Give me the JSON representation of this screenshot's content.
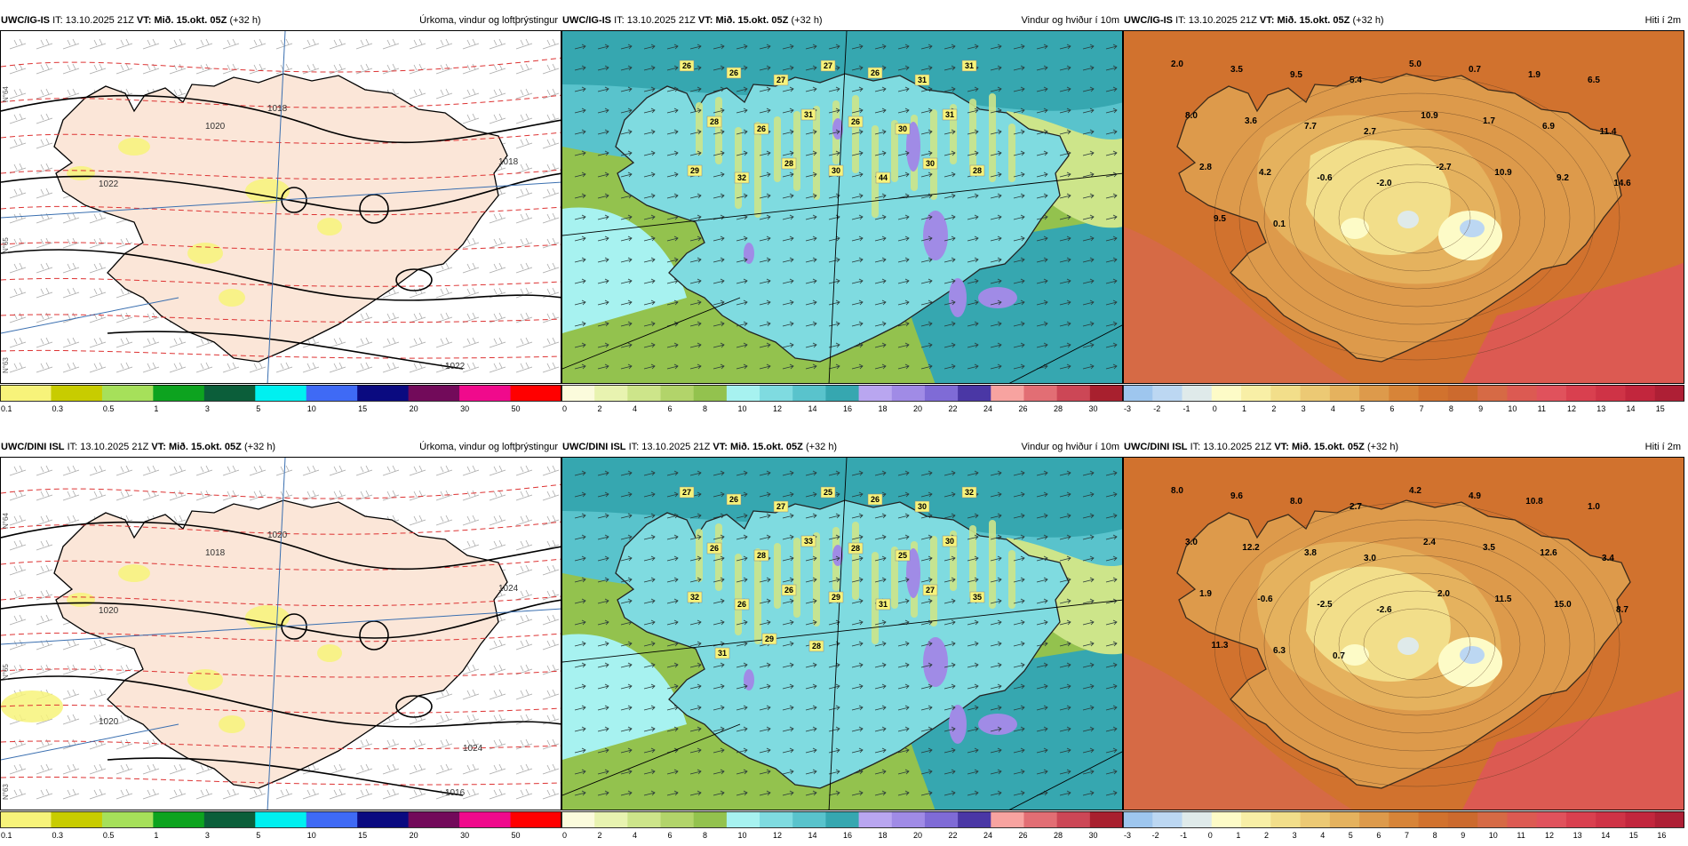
{
  "header_common": {
    "it_label": "IT:",
    "it_value": "13.10.2025 21Z",
    "vt_label": "VT:",
    "vt_value": "Mið. 15.okt. 05Z",
    "lead": "(+32 h)"
  },
  "rows": [
    {
      "model": "UWC/IG-IS"
    },
    {
      "model": "UWC/DINI ISL"
    }
  ],
  "panel_titles": {
    "precip": "Úrkoma, vindur og loftþrýstingur",
    "wind": "Vindur og hviður í 10m",
    "temp": "Hiti í 2m"
  },
  "colorbars": {
    "precip": {
      "labels": [
        "0.1",
        "0.3",
        "0.5",
        "1",
        "3",
        "5",
        "10",
        "15",
        "20",
        "30",
        "50"
      ],
      "colors": [
        "#f7f37a",
        "#c8cc00",
        "#a6e05a",
        "#0da31f",
        "#0b5e3a",
        "#00f0f0",
        "#3f6af5",
        "#0a0a80",
        "#720a5a",
        "#f00a8c",
        "#ff0000"
      ]
    },
    "wind": {
      "labels": [
        "0",
        "2",
        "4",
        "6",
        "8",
        "10",
        "12",
        "14",
        "16",
        "18",
        "20",
        "22",
        "24",
        "26",
        "28",
        "30"
      ],
      "colors": [
        "#fbfbdc",
        "#e8f3b0",
        "#cde58a",
        "#b2d46a",
        "#93c24e",
        "#a7f2f0",
        "#7fdbe0",
        "#59c3cc",
        "#36a7b0",
        "#b9a6f0",
        "#a08be6",
        "#7f6bd6",
        "#4a37a5",
        "#f7a3a0",
        "#e26e74",
        "#cc4756",
        "#a8202e"
      ]
    },
    "temp": {
      "labels": [
        "-3",
        "-2",
        "-1",
        "0",
        "1",
        "2",
        "3",
        "4",
        "5",
        "6",
        "7",
        "8",
        "9",
        "10",
        "11",
        "12",
        "13",
        "14",
        "15"
      ],
      "labels_b": [
        "-3",
        "-2",
        "-1",
        "0",
        "1",
        "2",
        "3",
        "4",
        "5",
        "6",
        "7",
        "8",
        "9",
        "10",
        "11",
        "12",
        "13",
        "14",
        "15",
        "16"
      ],
      "colors": [
        "#9ec6ee",
        "#bcd7f2",
        "#dfeaea",
        "#fdfbc7",
        "#f8efa6",
        "#f2de8a",
        "#ecc974",
        "#e5b25e",
        "#dd9a4b",
        "#d78438",
        "#d1722e",
        "#cc6a2e",
        "#d66a45",
        "#dc5a52",
        "#e0525c",
        "#d9404f",
        "#cf3346",
        "#c2263d",
        "#ae1f35"
      ]
    }
  },
  "wind_gust_values": {
    "row1": [
      "26",
      "26",
      "27",
      "27",
      "26",
      "31",
      "31",
      "28",
      "26",
      "31",
      "26",
      "30",
      "31",
      "29",
      "32",
      "28",
      "30",
      "44",
      "30",
      "28"
    ],
    "row2": [
      "27",
      "26",
      "27",
      "25",
      "26",
      "30",
      "32",
      "26",
      "28",
      "33",
      "28",
      "25",
      "30",
      "32",
      "26",
      "26",
      "29",
      "31",
      "27",
      "35",
      "31",
      "29",
      "28"
    ]
  },
  "temp_values": {
    "row1": [
      "2.0",
      "3.5",
      "9.5",
      "5.4",
      "5.0",
      "0.7",
      "1.9",
      "6.5",
      "8.0",
      "3.6",
      "7.7",
      "2.7",
      "10.9",
      "1.7",
      "6.9",
      "11.4",
      "2.8",
      "4.2",
      "-0.6",
      "-2.0",
      "-2.7",
      "10.9",
      "9.2",
      "14.6",
      "9.5",
      "0.1"
    ],
    "row2": [
      "8.0",
      "9.6",
      "8.0",
      "2.7",
      "4.2",
      "4.9",
      "10.8",
      "1.0",
      "3.0",
      "12.2",
      "3.8",
      "3.0",
      "2.4",
      "3.5",
      "12.6",
      "3.4",
      "1.9",
      "-0.6",
      "-2.5",
      "-2.6",
      "2.0",
      "11.5",
      "15.0",
      "8.7",
      "11.3",
      "6.3",
      "0.7"
    ]
  },
  "isobar_labels": {
    "row1": [
      "1018",
      "1020",
      "1018",
      "1022",
      "1022"
    ],
    "row2": [
      "1020",
      "1018",
      "1024",
      "1020",
      "1016",
      "1020",
      "1024"
    ]
  },
  "lat_labels": [
    "N°64",
    "N°65",
    "N°63"
  ]
}
